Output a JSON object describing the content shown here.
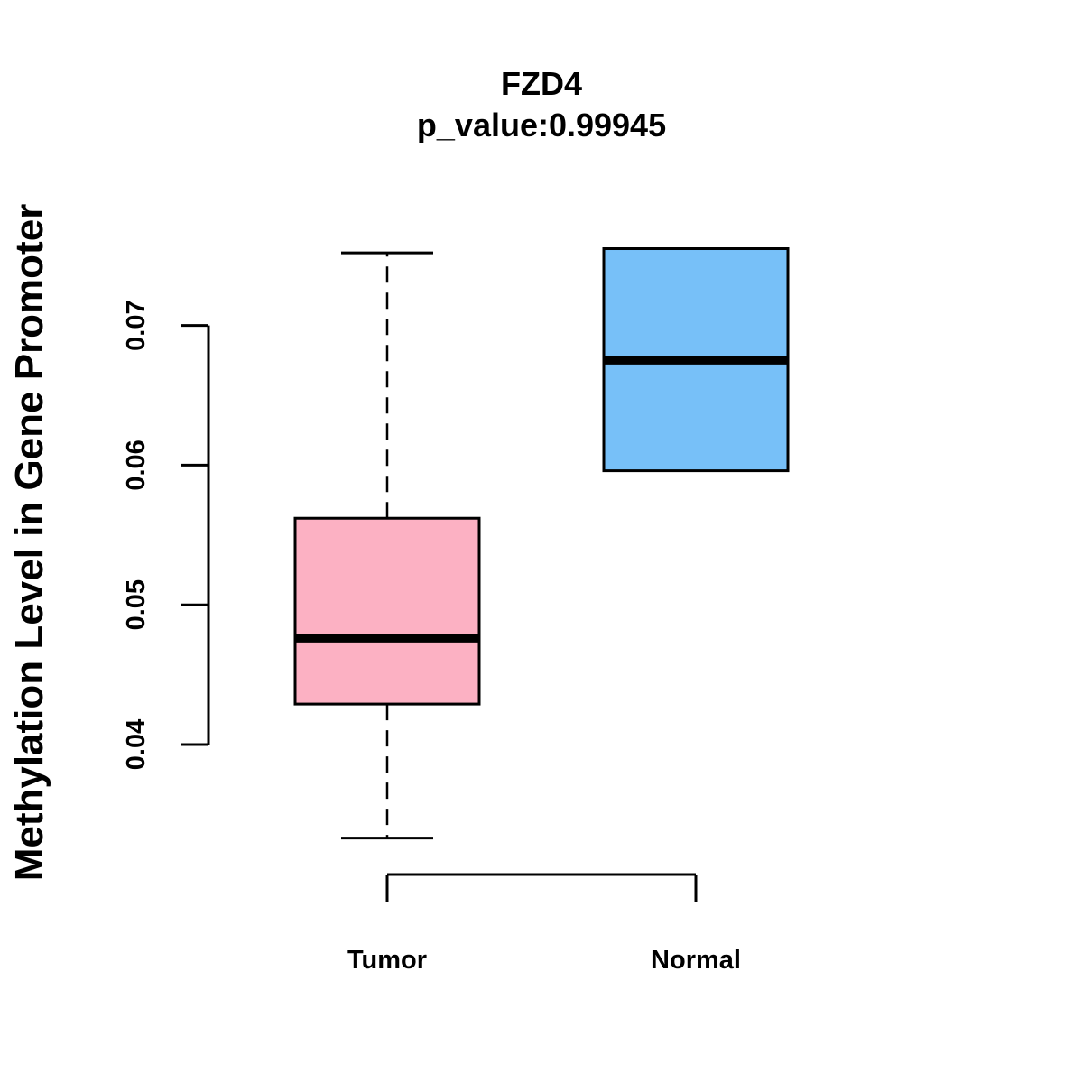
{
  "chart_data": {
    "type": "boxplot",
    "title": "FZD4",
    "subtitle": "p_value:0.99945",
    "xlabel": "",
    "ylabel": "Methylation Level in Gene Promoter",
    "ylim": [
      0.0316,
      0.0776
    ],
    "yticks": [
      0.04,
      0.05,
      0.06,
      0.07
    ],
    "ytick_labels": [
      "0.04",
      "0.05",
      "0.06",
      "0.07"
    ],
    "categories": [
      "Tumor",
      "Normal"
    ],
    "boxes": [
      {
        "name": "Tumor",
        "color": "#FCB1C3",
        "whisker_low": 0.0333,
        "q1": 0.0429,
        "median": 0.0476,
        "q3": 0.0562,
        "whisker_high": 0.0752
      },
      {
        "name": "Normal",
        "color": "#77C0F8",
        "whisker_low": 0.0596,
        "q1": 0.0596,
        "median": 0.0675,
        "q3": 0.0755,
        "whisker_high": 0.0755
      }
    ],
    "grid": false,
    "legend": "none"
  }
}
